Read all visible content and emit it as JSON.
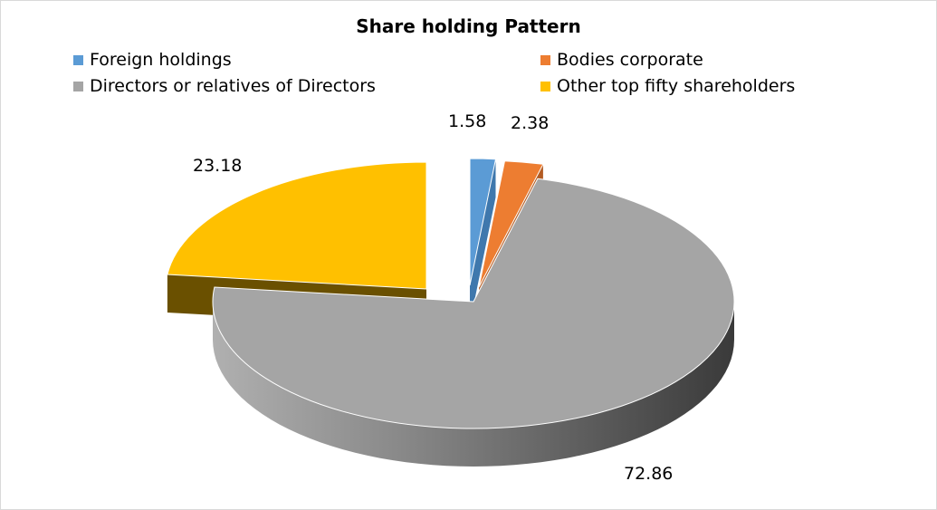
{
  "chart_data": {
    "type": "pie",
    "title": "Share holding Pattern",
    "legend_position": "top",
    "slices": [
      {
        "label": "Foreign holdings",
        "value": 1.58,
        "data_label": "1.58",
        "color": "#5b9bd5"
      },
      {
        "label": "Bodies corporate",
        "value": 2.38,
        "data_label": "2.38",
        "color": "#ed7d31"
      },
      {
        "label": "Directors or relatives of Directors",
        "value": 72.86,
        "data_label": "72.86",
        "color": "#a5a5a5"
      },
      {
        "label": "Other top fifty shareholders",
        "value": 23.18,
        "data_label": "23.18",
        "color": "#ffc000"
      }
    ]
  }
}
